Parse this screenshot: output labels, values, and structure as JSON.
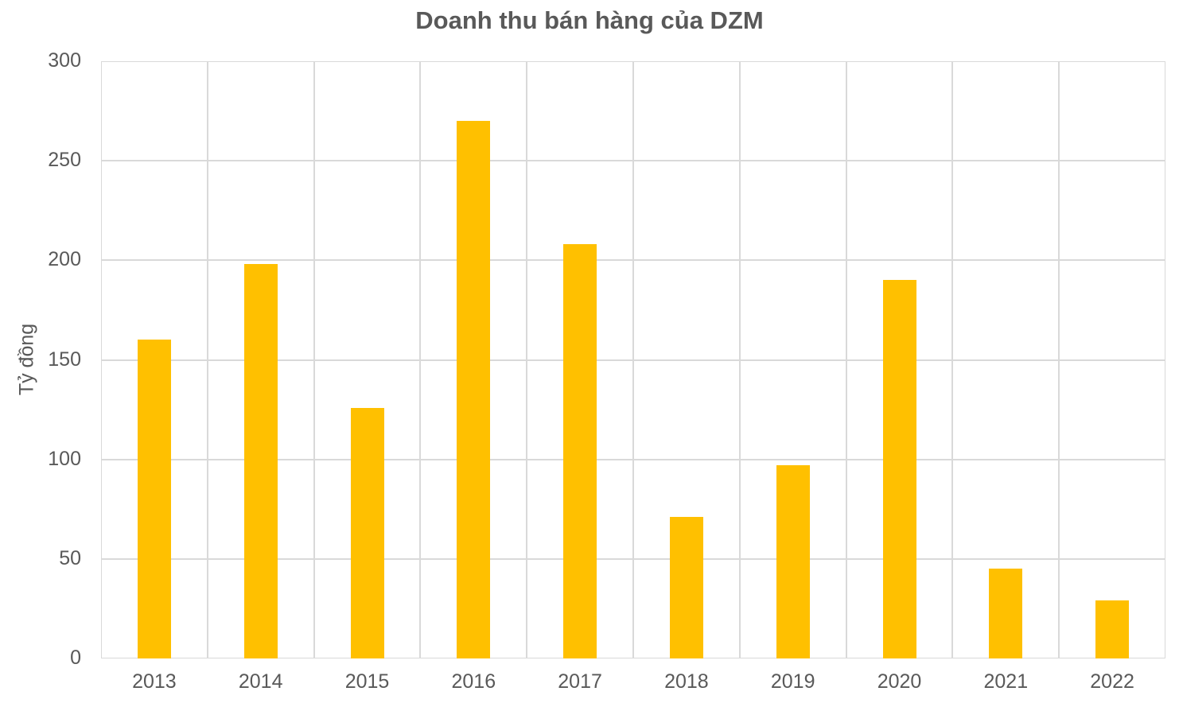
{
  "chart_data": {
    "type": "bar",
    "title": "Doanh thu bán hàng của DZM",
    "xlabel": "",
    "ylabel": "Tỷ đồng",
    "categories": [
      "2013",
      "2014",
      "2015",
      "2016",
      "2017",
      "2018",
      "2019",
      "2020",
      "2021",
      "2022"
    ],
    "values": [
      160,
      198,
      126,
      270,
      208,
      71,
      97,
      190,
      45,
      29
    ],
    "ylim": [
      0,
      300
    ],
    "yticks": [
      "0",
      "50",
      "100",
      "150",
      "200",
      "250",
      "300"
    ],
    "grid": true,
    "legend": null,
    "bar_color": "#ffc000"
  }
}
